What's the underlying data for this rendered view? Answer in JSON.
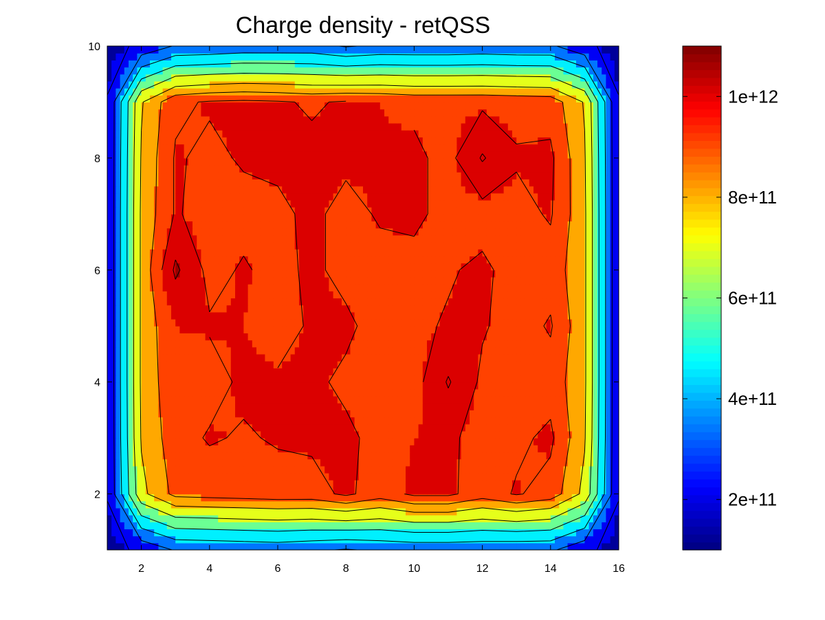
{
  "chart_data": {
    "type": "heatmap",
    "subtype": "filled-contour",
    "title": "Charge density - retQSS",
    "xlabel": "",
    "ylabel": "",
    "xlim": [
      1,
      16
    ],
    "ylim": [
      1,
      10
    ],
    "x_ticks": [
      2,
      4,
      6,
      8,
      10,
      12,
      14,
      16
    ],
    "y_ticks": [
      2,
      4,
      6,
      8,
      10
    ],
    "x_tick_labels": [
      "2",
      "4",
      "6",
      "8",
      "10",
      "12",
      "14",
      "16"
    ],
    "y_tick_labels": [
      "2",
      "4",
      "6",
      "8",
      "10"
    ],
    "colorbar": {
      "colormap": "jet",
      "range": [
        100000000000.0,
        1100000000000.0
      ],
      "ticks": [
        200000000000.0,
        400000000000.0,
        600000000000.0,
        800000000000.0,
        1000000000000.0
      ],
      "tick_labels": [
        "2e+11",
        "4e+11",
        "6e+11",
        "8e+11",
        "1e+12"
      ]
    },
    "contour_levels": [
      150000000000.0,
      280000000000.0,
      400000000000.0,
      520000000000.0,
      640000000000.0,
      760000000000.0,
      860000000000.0,
      960000000000.0,
      1060000000000.0
    ],
    "grid": false,
    "x": [
      1,
      2,
      3,
      4,
      5,
      6,
      7,
      8,
      9,
      10,
      11,
      12,
      13,
      14,
      15,
      16
    ],
    "y": [
      1,
      2,
      3,
      4,
      5,
      6,
      7,
      8,
      9,
      10
    ],
    "z": [
      [
        80000000000.0,
        190000000000.0,
        290000000000.0,
        300000000000.0,
        310000000000.0,
        320000000000.0,
        300000000000.0,
        270000000000.0,
        300000000000.0,
        310000000000.0,
        310000000000.0,
        310000000000.0,
        300000000000.0,
        300000000000.0,
        190000000000.0,
        80000000000.0
      ],
      [
        160000000000.0,
        730000000000.0,
        890000000000.0,
        900000000000.0,
        910000000000.0,
        920000000000.0,
        920000000000.0,
        980000000000.0,
        910000000000.0,
        980000000000.0,
        980000000000.0,
        910000000000.0,
        970000000000.0,
        920000000000.0,
        730000000000.0,
        160000000000.0
      ],
      [
        160000000000.0,
        770000000000.0,
        920000000000.0,
        970000000000.0,
        950000000000.0,
        970000000000.0,
        980000000000.0,
        980000000000.0,
        930000000000.0,
        960000000000.0,
        980000000000.0,
        920000000000.0,
        940000000000.0,
        980000000000.0,
        770000000000.0,
        160000000000.0
      ],
      [
        160000000000.0,
        780000000000.0,
        940000000000.0,
        920000000000.0,
        980000000000.0,
        970000000000.0,
        980000000000.0,
        940000000000.0,
        930000000000.0,
        920000000000.0,
        1070000000000.0,
        940000000000.0,
        910000000000.0,
        920000000000.0,
        780000000000.0,
        160000000000.0
      ],
      [
        160000000000.0,
        780000000000.0,
        960000000000.0,
        970000000000.0,
        960000000000.0,
        930000000000.0,
        970000000000.0,
        980000000000.0,
        920000000000.0,
        940000000000.0,
        970000000000.0,
        970000000000.0,
        920000000000.0,
        970000000000.0,
        780000000000.0,
        160000000000.0
      ],
      [
        160000000000.0,
        780000000000.0,
        1080000000000.0,
        930000000000.0,
        970000000000.0,
        930000000000.0,
        980000000000.0,
        930000000000.0,
        930000000000.0,
        930000000000.0,
        950000000000.0,
        980000000000.0,
        920000000000.0,
        920000000000.0,
        780000000000.0,
        160000000000.0
      ],
      [
        160000000000.0,
        780000000000.0,
        970000000000.0,
        920000000000.0,
        930000000000.0,
        940000000000.0,
        980000000000.0,
        930000000000.0,
        970000000000.0,
        980000000000.0,
        930000000000.0,
        920000000000.0,
        930000000000.0,
        970000000000.0,
        780000000000.0,
        160000000000.0
      ],
      [
        160000000000.0,
        770000000000.0,
        970000000000.0,
        940000000000.0,
        970000000000.0,
        980000000000.0,
        980000000000.0,
        980000000000.0,
        970000000000.0,
        980000000000.0,
        930000000000.0,
        1070000000000.0,
        970000000000.0,
        980000000000.0,
        770000000000.0,
        160000000000.0
      ],
      [
        160000000000.0,
        750000000000.0,
        940000000000.0,
        970000000000.0,
        980000000000.0,
        970000000000.0,
        950000000000.0,
        970000000000.0,
        960000000000.0,
        940000000000.0,
        940000000000.0,
        940000000000.0,
        930000000000.0,
        920000000000.0,
        750000000000.0,
        160000000000.0
      ],
      [
        80000000000.0,
        190000000000.0,
        290000000000.0,
        300000000000.0,
        320000000000.0,
        320000000000.0,
        320000000000.0,
        270000000000.0,
        300000000000.0,
        300000000000.0,
        300000000000.0,
        310000000000.0,
        300000000000.0,
        300000000000.0,
        190000000000.0,
        80000000000.0
      ]
    ]
  }
}
